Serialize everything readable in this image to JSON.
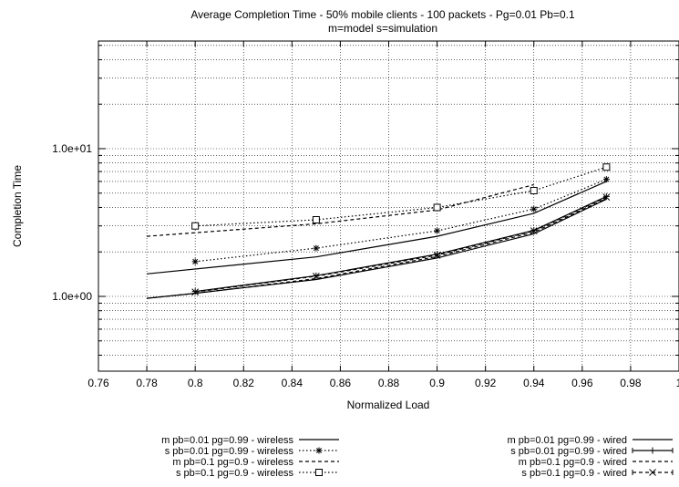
{
  "chart_data": {
    "type": "line",
    "title": "Average Completion Time - 50% mobile clients - 100 packets - Pg=0.01 Pb=0.1",
    "subtitle": "m=model s=simulation",
    "xlabel": "Normalized Load",
    "ylabel": "Completion Time",
    "xlim": [
      0.76,
      1.0
    ],
    "ylim": [
      0.3,
      60
    ],
    "yscale": "log",
    "grid": true,
    "legend_position": "bottom",
    "xticks": [
      "0.76",
      "0.78",
      "0.8",
      "0.82",
      "0.84",
      "0.86",
      "0.88",
      "0.9",
      "0.92",
      "0.94",
      "0.96",
      "0.98",
      "1"
    ],
    "yticks": [
      "1.0e+00",
      "1.0e+01"
    ],
    "series": [
      {
        "name": "m pb=0.01  pg=0.99 - wireless",
        "kind": "model",
        "dash": "solid",
        "marker": "none",
        "x": [
          0.78,
          0.85,
          0.9,
          0.94,
          0.97
        ],
        "y": [
          1.42,
          1.85,
          2.55,
          3.65,
          6.0
        ]
      },
      {
        "name": "s pb=0.01  pg=0.99 - wireless",
        "kind": "simulation",
        "dash": "dotted",
        "marker": "star",
        "x": [
          0.8,
          0.85,
          0.9,
          0.94,
          0.97
        ],
        "y": [
          1.72,
          2.12,
          2.78,
          3.9,
          6.2
        ]
      },
      {
        "name": "m pb=0.1  pg=0.9 - wireless",
        "kind": "model",
        "dash": "dashed",
        "marker": "none",
        "x": [
          0.78,
          0.85,
          0.9,
          0.94
        ],
        "y": [
          2.55,
          3.1,
          3.85,
          5.7
        ]
      },
      {
        "name": "s pb=0.1  pg=0.9 - wireless",
        "kind": "simulation",
        "dash": "dotted",
        "marker": "square",
        "x": [
          0.8,
          0.85,
          0.9,
          0.94,
          0.97
        ],
        "y": [
          3.0,
          3.3,
          4.0,
          5.2,
          7.5
        ]
      },
      {
        "name": "m pb=0.01 pg=0.99 - wired",
        "kind": "model",
        "dash": "solid",
        "marker": "none",
        "x": [
          0.78,
          0.8,
          0.85,
          0.9,
          0.94,
          0.97
        ],
        "y": [
          0.97,
          1.05,
          1.3,
          1.82,
          2.65,
          4.55
        ]
      },
      {
        "name": "s pb=0.01 pg=0.99 - wired",
        "kind": "simulation",
        "dash": "solid",
        "marker": "plus",
        "x": [
          0.8,
          0.85,
          0.9,
          0.94,
          0.97
        ],
        "y": [
          1.08,
          1.38,
          1.93,
          2.8,
          4.75
        ]
      },
      {
        "name": "m pb=0.1 pg=0.9 - wired",
        "kind": "model",
        "dash": "dashed",
        "marker": "none",
        "x": [
          0.78,
          0.8,
          0.85,
          0.9,
          0.94,
          0.97
        ],
        "y": [
          0.97,
          1.05,
          1.32,
          1.86,
          2.72,
          4.6
        ]
      },
      {
        "name": "s pb=0.1 pg=0.9 - wired",
        "kind": "simulation",
        "dash": "dashed",
        "marker": "cross",
        "x": [
          0.8,
          0.85,
          0.9,
          0.94,
          0.97
        ],
        "y": [
          1.07,
          1.37,
          1.9,
          2.78,
          4.7
        ]
      }
    ]
  }
}
